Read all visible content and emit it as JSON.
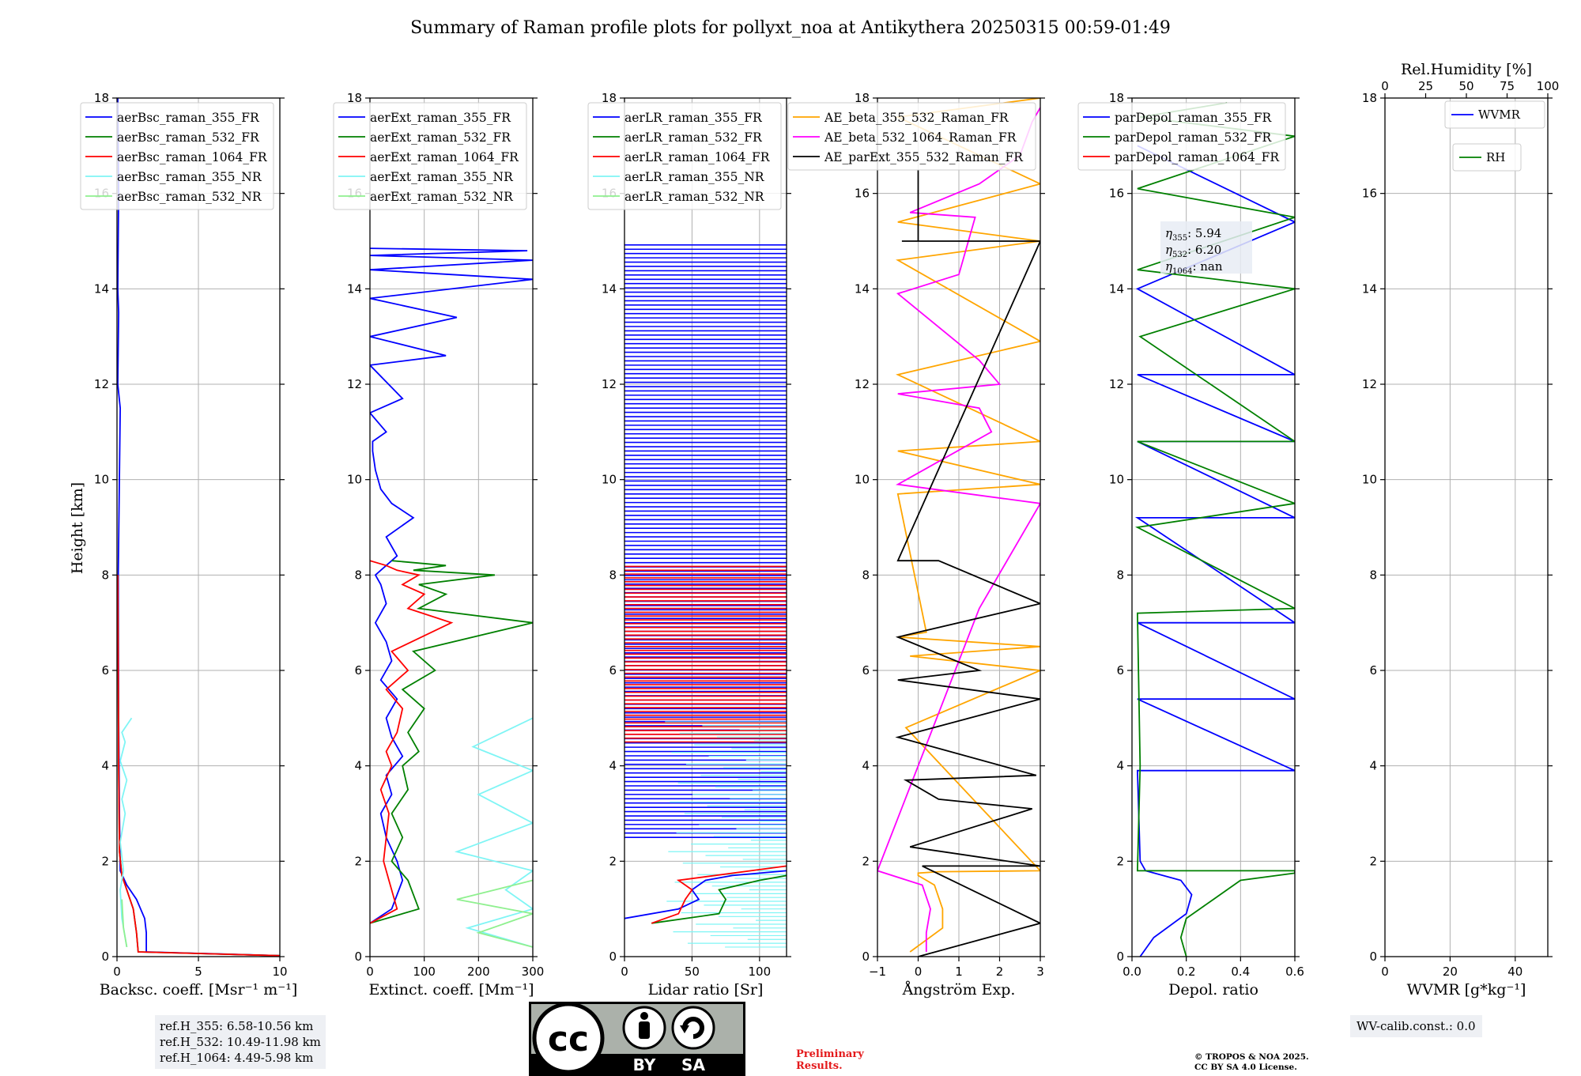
{
  "title": "Summary of Raman profile plots for pollyxt_noa at Antikythera 20250315 00:59-01:49",
  "y_axis_label": "Height [km]",
  "ref_lines": [
    "ref.H_355: 6.58-10.56 km",
    "ref.H_532: 10.49-11.98 km",
    "ref.H_1064: 4.49-5.98 km"
  ],
  "wv_calib": "WV-calib.const.: 0.0",
  "preliminary": [
    "Preliminary",
    "Results."
  ],
  "copyright": [
    "© TROPOS & NOA 2025.",
    "CC BY SA 4.0 License."
  ],
  "license_badge": {
    "icon": "cc-by-sa-icon",
    "labels": [
      "BY",
      "SA"
    ]
  },
  "eta_annotation": [
    {
      "label": "η",
      "sub": "355",
      "value": ": 5.94"
    },
    {
      "label": "η",
      "sub": "532",
      "value": ": 6.20"
    },
    {
      "label": "η",
      "sub": "1064",
      "value": ": nan"
    }
  ],
  "colors": {
    "blue": "#0000ff",
    "green": "#008000",
    "red": "#ff0000",
    "cyan": "#7ff5f5",
    "lightgreen": "#8ff08f",
    "orange": "#ffa500",
    "magenta": "#ff00ff",
    "black": "#000000"
  },
  "chart_data": [
    {
      "type": "line",
      "panel": 1,
      "xlabel": "Backsc. coeff. [Msr⁻¹ m⁻¹]",
      "xlim": [
        0,
        10
      ],
      "xticks": [
        0,
        5,
        10
      ],
      "ylim": [
        0,
        18
      ],
      "yticks": [
        0,
        2,
        4,
        6,
        8,
        10,
        12,
        14,
        16,
        18
      ],
      "legend": [
        {
          "name": "aerBsc_raman_355_FR",
          "color": "blue"
        },
        {
          "name": "aerBsc_raman_532_FR",
          "color": "green"
        },
        {
          "name": "aerBsc_raman_1064_FR",
          "color": "red"
        },
        {
          "name": "aerBsc_raman_355_NR",
          "color": "cyan"
        },
        {
          "name": "aerBsc_raman_532_NR",
          "color": "lightgreen"
        }
      ],
      "series": [
        {
          "name": "aerBsc_raman_355_FR",
          "color": "blue",
          "x": [
            10,
            1.8,
            1.8,
            1.7,
            1.2,
            0.6,
            0.2,
            0.15,
            0.1,
            0.08,
            0.2,
            0.05,
            0.1,
            0.05,
            0.1,
            0.05
          ],
          "y": [
            0.02,
            0.1,
            0.5,
            0.8,
            1.2,
            1.5,
            1.8,
            3,
            5,
            8,
            11.5,
            12,
            13.5,
            14,
            16,
            18
          ]
        },
        {
          "name": "aerBsc_raman_532_FR",
          "color": "green",
          "x": [
            10,
            1.3,
            1.2,
            1.0,
            0.6,
            0.3,
            0.15,
            0.1,
            0.08,
            0.05
          ],
          "y": [
            0.02,
            0.1,
            0.5,
            1.0,
            1.4,
            1.7,
            2.2,
            4,
            6,
            8
          ]
        },
        {
          "name": "aerBsc_raman_1064_FR",
          "color": "red",
          "x": [
            10,
            1.3,
            1.2,
            1.0,
            0.6,
            0.3,
            0.15,
            0.1,
            0.08,
            0.05
          ],
          "y": [
            0.02,
            0.1,
            0.5,
            1.0,
            1.4,
            1.7,
            2.2,
            4,
            6,
            8
          ]
        },
        {
          "name": "aerBsc_raman_355_NR",
          "color": "cyan",
          "x": [
            0.6,
            0.3,
            0.2,
            0.4,
            0.2,
            0.5,
            0.3,
            0.6,
            0.2,
            0.5,
            0.3,
            0.9
          ],
          "y": [
            0.2,
            0.8,
            1.4,
            1.8,
            2.4,
            3.0,
            3.3,
            3.7,
            4.1,
            4.5,
            4.7,
            5.0
          ]
        },
        {
          "name": "aerBsc_raman_532_NR",
          "color": "lightgreen",
          "x": [
            0.6,
            0.4,
            0.3
          ],
          "y": [
            0.2,
            0.6,
            1.2
          ]
        }
      ]
    },
    {
      "type": "line",
      "panel": 2,
      "xlabel": "Extinct. coeff. [Mm⁻¹]",
      "xlim": [
        0,
        300
      ],
      "xticks": [
        0,
        100,
        200,
        300
      ],
      "ylim": [
        0,
        18
      ],
      "yticks": [
        0,
        2,
        4,
        6,
        8,
        10,
        12,
        14,
        16,
        18
      ],
      "legend": [
        {
          "name": "aerExt_raman_355_FR",
          "color": "blue"
        },
        {
          "name": "aerExt_raman_532_FR",
          "color": "green"
        },
        {
          "name": "aerExt_raman_1064_FR",
          "color": "red"
        },
        {
          "name": "aerExt_raman_355_NR",
          "color": "cyan"
        },
        {
          "name": "aerExt_raman_532_NR",
          "color": "lightgreen"
        }
      ],
      "series": [
        {
          "name": "aerExt_raman_355_FR",
          "color": "blue",
          "x": [
            0,
            40,
            60,
            50,
            30,
            20,
            40,
            30,
            60,
            40,
            30,
            50,
            20,
            40,
            30,
            10,
            30,
            20,
            10,
            50,
            30,
            80,
            40,
            20,
            10,
            5,
            5,
            30,
            0,
            60,
            0,
            140,
            0,
            160,
            0,
            300,
            0,
            300,
            0,
            290,
            0
          ],
          "y": [
            0.7,
            1.0,
            1.6,
            2.0,
            2.5,
            3.0,
            3.4,
            3.8,
            4.2,
            4.6,
            5.0,
            5.4,
            5.8,
            6.2,
            6.6,
            7.0,
            7.4,
            7.8,
            8.0,
            8.4,
            8.8,
            9.2,
            9.5,
            9.8,
            10.2,
            10.6,
            10.8,
            11.0,
            11.4,
            11.7,
            12.4,
            12.6,
            13.0,
            13.4,
            13.8,
            14.2,
            14.4,
            14.6,
            14.7,
            14.8,
            14.85
          ]
        },
        {
          "name": "aerExt_raman_532_FR",
          "color": "green",
          "x": [
            0,
            90,
            70,
            40,
            60,
            40,
            70,
            60,
            90,
            70,
            100,
            60,
            120,
            80,
            300,
            90,
            140,
            90,
            230,
            80,
            140,
            40
          ],
          "y": [
            0.7,
            1.0,
            1.6,
            2.0,
            2.5,
            3.0,
            3.5,
            4.0,
            4.3,
            4.7,
            5.2,
            5.6,
            6.0,
            6.4,
            7.0,
            7.3,
            7.6,
            7.8,
            8.0,
            8.1,
            8.2,
            8.3
          ]
        },
        {
          "name": "aerExt_raman_1064_FR",
          "color": "red",
          "x": [
            0,
            50,
            35,
            25,
            30,
            35,
            20,
            40,
            30,
            50,
            60,
            30,
            70,
            40,
            150,
            70,
            100,
            60,
            90,
            50,
            30,
            0
          ],
          "y": [
            0.7,
            1.0,
            1.6,
            2.0,
            2.5,
            3.0,
            3.5,
            4.0,
            4.3,
            4.7,
            5.2,
            5.6,
            6.0,
            6.4,
            7.0,
            7.3,
            7.6,
            7.8,
            8.0,
            8.1,
            8.2,
            8.3
          ]
        },
        {
          "name": "aerExt_raman_355_NR",
          "color": "cyan",
          "x": [
            300,
            180,
            300,
            250,
            300,
            160,
            300,
            200,
            300,
            190,
            300
          ],
          "y": [
            0.2,
            0.6,
            1.0,
            1.4,
            1.8,
            2.2,
            2.8,
            3.4,
            3.9,
            4.4,
            5.0
          ]
        },
        {
          "name": "aerExt_raman_532_NR",
          "color": "lightgreen",
          "x": [
            300,
            200,
            300,
            160,
            300
          ],
          "y": [
            0.2,
            0.5,
            0.9,
            1.2,
            1.6
          ]
        }
      ]
    },
    {
      "type": "line",
      "panel": 3,
      "xlabel": "Lidar ratio [Sr]",
      "xlim": [
        0,
        120
      ],
      "xticks": [
        0,
        50,
        100
      ],
      "ylim": [
        0,
        18
      ],
      "yticks": [
        0,
        2,
        4,
        6,
        8,
        10,
        12,
        14,
        16,
        18
      ],
      "legend": [
        {
          "name": "aerLR_raman_355_FR",
          "color": "blue"
        },
        {
          "name": "aerLR_raman_532_FR",
          "color": "green"
        },
        {
          "name": "aerLR_raman_1064_FR",
          "color": "red"
        },
        {
          "name": "aerLR_raman_355_NR",
          "color": "cyan"
        },
        {
          "name": "aerLR_raman_532_NR",
          "color": "lightgreen"
        }
      ],
      "series": [
        {
          "name": "aerLR_raman_355_FR",
          "color": "blue",
          "x": [
            0,
            40,
            55,
            50,
            60,
            80,
            120
          ],
          "y": [
            0.8,
            1.0,
            1.2,
            1.4,
            1.6,
            1.7,
            1.8
          ]
        },
        {
          "name": "aerLR_raman_532_FR",
          "color": "green",
          "x": [
            20,
            70,
            75,
            70,
            100,
            120
          ],
          "y": [
            0.7,
            0.9,
            1.2,
            1.4,
            1.6,
            1.7
          ]
        },
        {
          "name": "aerLR_raman_1064_FR",
          "color": "red",
          "x": [
            20,
            40,
            45,
            50,
            40,
            120
          ],
          "y": [
            0.7,
            0.9,
            1.2,
            1.4,
            1.6,
            1.9
          ]
        }
      ],
      "horizontal_bands": [
        {
          "color": "blue",
          "y_ranges": [
            [
              2.5,
              15
            ]
          ],
          "note": "dense horizontal spikes across full width"
        },
        {
          "color": "red",
          "y_ranges": [
            [
              4.5,
              8.2
            ]
          ],
          "note": "dense horizontal spikes across full width"
        },
        {
          "color": "cyan",
          "y_ranges": [
            [
              0.2,
              5
            ]
          ],
          "note": "dense horizontal spikes"
        }
      ]
    },
    {
      "type": "line",
      "panel": 4,
      "xlabel": "Ångström Exp.",
      "xlim": [
        -1,
        3
      ],
      "xticks": [
        -1,
        0,
        1,
        2,
        3
      ],
      "ylim": [
        0,
        18
      ],
      "yticks": [
        0,
        2,
        4,
        6,
        8,
        10,
        12,
        14,
        16,
        18
      ],
      "legend": [
        {
          "name": "AE_beta_355_532_Raman_FR",
          "color": "orange"
        },
        {
          "name": "AE_beta_532_1064_Raman_FR",
          "color": "magenta"
        },
        {
          "name": "AE_parExt_355_532_Raman_FR",
          "color": "black"
        }
      ],
      "series": [
        {
          "name": "AE_beta_355_532_Raman_FR",
          "color": "orange",
          "x": [
            -0.2,
            0.6,
            0.6,
            0.4,
            0.0,
            0.0,
            0.5,
            3.0,
            -0.3,
            3.0,
            -0.2,
            3.0,
            -0.5,
            0.2,
            -0.5,
            3.0,
            -0.5,
            3.0,
            -0.5,
            3.0,
            -0.5,
            3.0,
            -0.5,
            3.0,
            -0.5,
            3.0
          ],
          "y": [
            0.1,
            0.6,
            1.0,
            1.5,
            1.7,
            1.75,
            1.78,
            1.8,
            4.8,
            6.0,
            6.3,
            6.5,
            6.7,
            6.8,
            9.7,
            9.9,
            10.6,
            10.8,
            12.2,
            12.9,
            14.6,
            15.0,
            15.4,
            16.2,
            17.6,
            18.0
          ]
        },
        {
          "name": "AE_beta_532_1064_Raman_FR",
          "color": "magenta",
          "x": [
            0.2,
            0.2,
            0.3,
            0.1,
            -1.0,
            1.5,
            3.0,
            -0.5,
            1.8,
            1.5,
            -0.5,
            2.0,
            1.5,
            -0.5,
            1.0,
            1.4,
            -0.2,
            1.5,
            2.5,
            2.8,
            3.0
          ],
          "y": [
            0.1,
            0.5,
            1.0,
            1.5,
            1.8,
            7.3,
            9.5,
            9.9,
            11.0,
            11.5,
            11.8,
            12.0,
            12.5,
            13.9,
            14.3,
            15.5,
            15.6,
            16.2,
            16.8,
            17.5,
            17.8
          ]
        },
        {
          "name": "AE_parExt_355_532_Raman_FR",
          "color": "black",
          "x": [
            0.0,
            3.0,
            0.1,
            3.0,
            -0.2,
            2.8,
            0.5,
            -0.3,
            2.9,
            -0.5,
            3.0,
            -0.5,
            1.5,
            -0.5,
            3.0,
            0.5,
            -0.5,
            3.0,
            -0.4,
            0.0,
            0.0
          ],
          "y": [
            0.0,
            0.7,
            1.9,
            1.9,
            2.3,
            3.1,
            3.3,
            3.7,
            3.8,
            4.6,
            5.4,
            5.8,
            6.0,
            6.7,
            7.4,
            8.3,
            8.3,
            15.0,
            15.0,
            15.0,
            16.5
          ]
        }
      ]
    },
    {
      "type": "line",
      "panel": 5,
      "xlabel": "Depol. ratio",
      "xlim": [
        0,
        0.6
      ],
      "xticks": [
        0.0,
        0.2,
        0.4,
        0.6
      ],
      "ylim": [
        0,
        18
      ],
      "yticks": [
        0,
        2,
        4,
        6,
        8,
        10,
        12,
        14,
        16,
        18
      ],
      "legend": [
        {
          "name": "parDepol_raman_355_FR",
          "color": "blue"
        },
        {
          "name": "parDepol_raman_532_FR",
          "color": "green"
        },
        {
          "name": "parDepol_raman_1064_FR",
          "color": "red"
        }
      ],
      "series": [
        {
          "name": "parDepol_raman_355_FR",
          "color": "blue",
          "x": [
            0.03,
            0.08,
            0.2,
            0.22,
            0.18,
            0.05,
            0.03,
            0.02,
            0.6,
            0.02,
            0.6,
            0.02,
            0.6,
            0.02,
            0.6,
            0.02,
            0.6,
            0.02,
            0.6,
            0.02,
            0.6,
            0.02
          ],
          "y": [
            0.0,
            0.4,
            0.9,
            1.3,
            1.6,
            1.8,
            2.0,
            3.9,
            3.9,
            5.4,
            5.4,
            7.0,
            7.0,
            9.2,
            9.2,
            10.8,
            10.8,
            12.2,
            12.2,
            14.0,
            15.4,
            17.0
          ]
        },
        {
          "name": "parDepol_raman_532_FR",
          "color": "green",
          "x": [
            0.2,
            0.18,
            0.2,
            0.3,
            0.4,
            0.6,
            0.6,
            0.02,
            0.03,
            0.02,
            0.6,
            0.02,
            0.6,
            0.02,
            0.6,
            0.03,
            0.6,
            0.02,
            0.6,
            0.02,
            0.6,
            0.03,
            0.35
          ],
          "y": [
            0.0,
            0.4,
            0.8,
            1.2,
            1.6,
            1.75,
            1.8,
            1.8,
            4.0,
            7.2,
            7.3,
            9.0,
            9.5,
            10.8,
            10.8,
            13.0,
            14.0,
            14.4,
            15.5,
            16.1,
            17.2,
            17.6,
            17.9
          ]
        }
      ]
    },
    {
      "type": "line",
      "panel": 6,
      "xlabel": "WVMR [g*kg⁻¹]",
      "xlim": [
        0,
        50
      ],
      "xticks": [
        0,
        20,
        40
      ],
      "ylim": [
        0,
        18
      ],
      "yticks": [
        0,
        2,
        4,
        6,
        8,
        10,
        12,
        14,
        16,
        18
      ],
      "top_xlabel": "Rel.Humidity [%]",
      "top_xlim": [
        0,
        100
      ],
      "top_xticks": [
        0,
        25,
        50,
        75,
        100
      ],
      "legend": [
        {
          "name": "WVMR",
          "color": "blue"
        },
        {
          "name": "RH",
          "color": "green"
        }
      ],
      "series": []
    }
  ]
}
